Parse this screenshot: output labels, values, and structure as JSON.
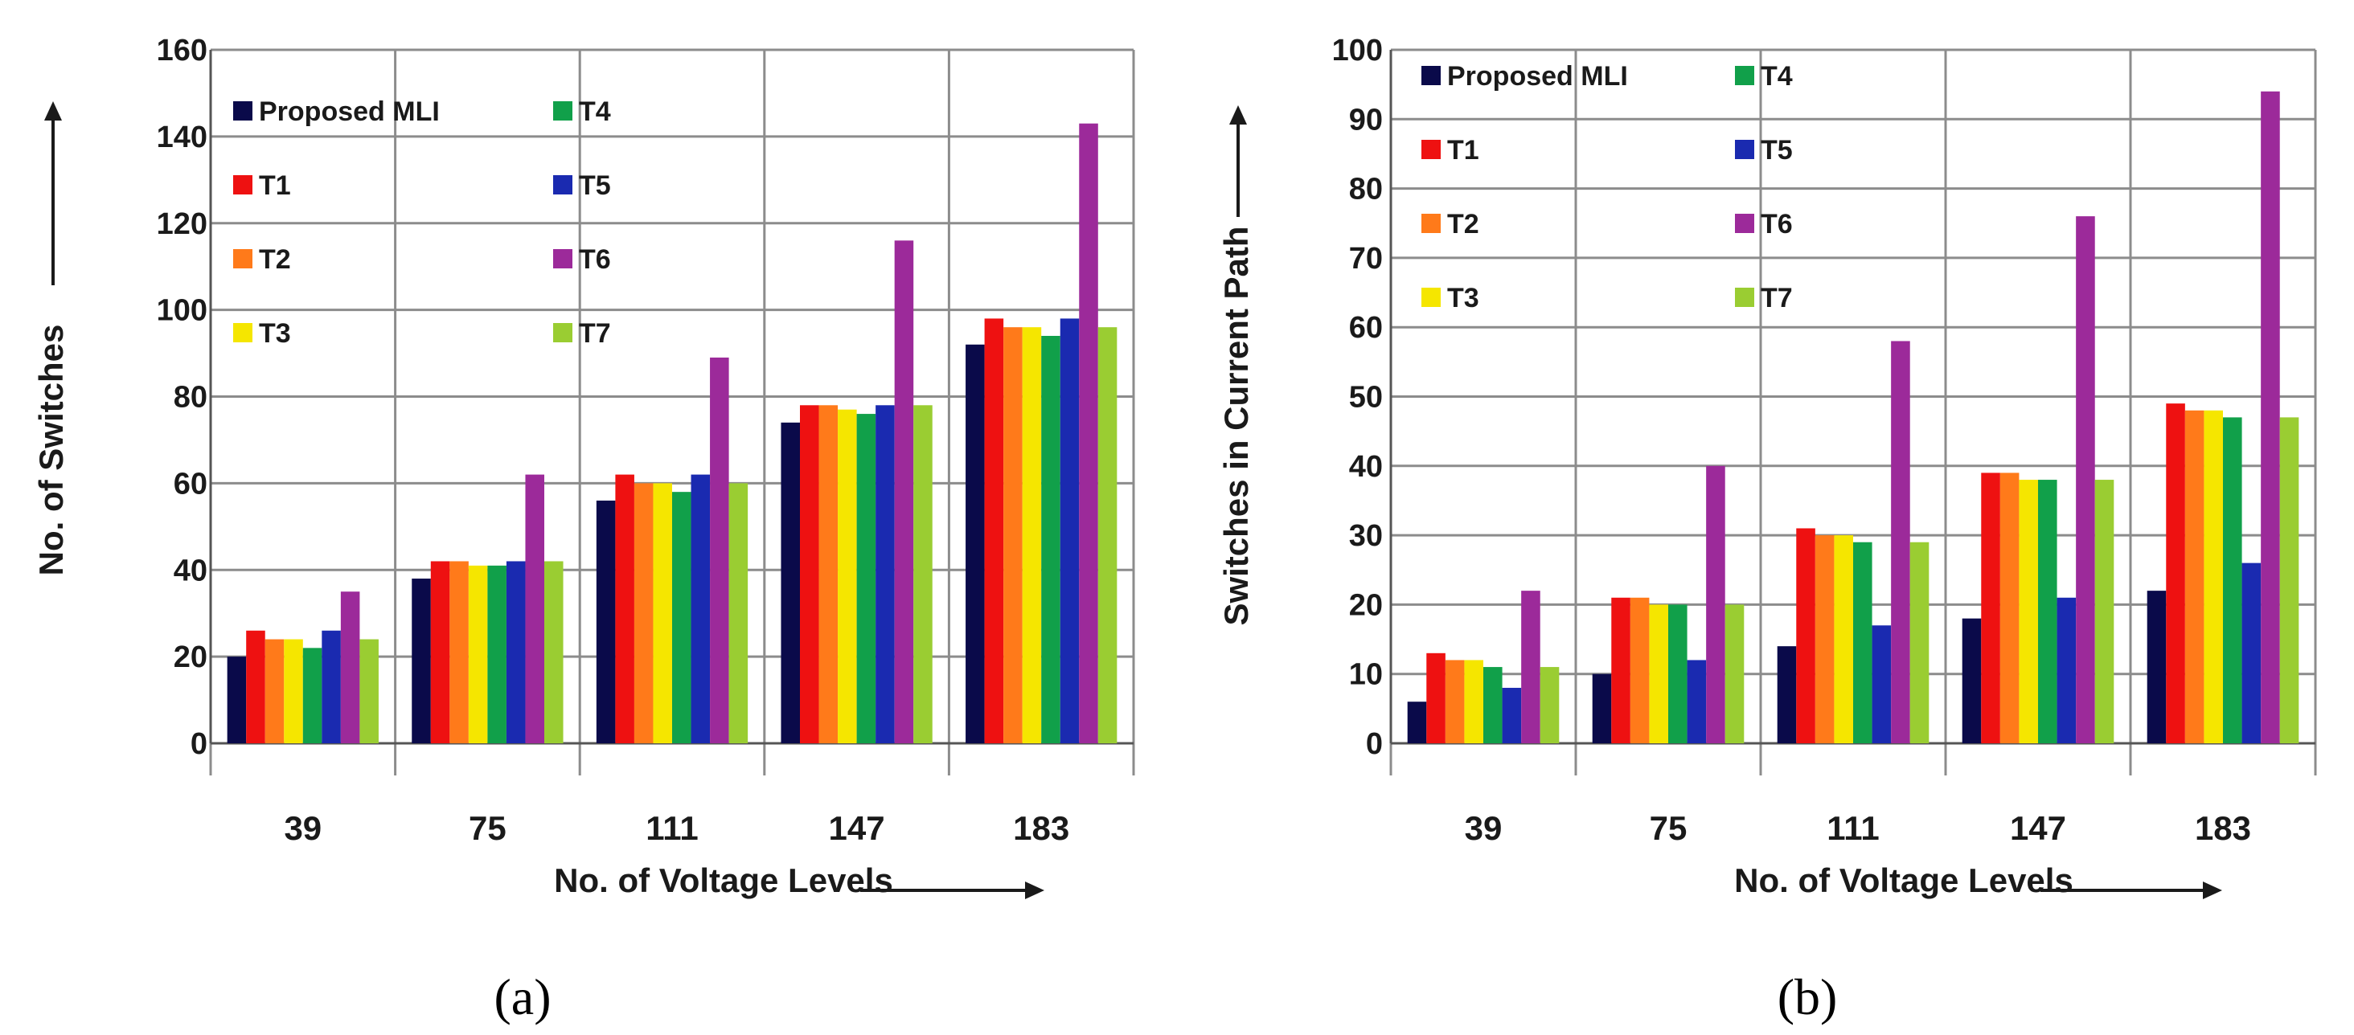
{
  "chart_data": [
    {
      "type": "bar",
      "panel_label": "(a)",
      "xlabel": "No. of Voltage Levels",
      "ylabel": "No. of Switches",
      "categories": [
        "39",
        "75",
        "111",
        "147",
        "183"
      ],
      "ylim": [
        0,
        160
      ],
      "yticks": [
        "0",
        "20",
        "40",
        "60",
        "80",
        "100",
        "120",
        "140",
        "160"
      ],
      "grid": true,
      "legend_placement": "top-left",
      "series": [
        {
          "name": "Proposed MLI",
          "color": "#0a0a4a",
          "values": [
            20,
            38,
            56,
            74,
            92
          ]
        },
        {
          "name": "T1",
          "color": "#ee1111",
          "values": [
            26,
            42,
            62,
            78,
            98
          ]
        },
        {
          "name": "T2",
          "color": "#ff7a1a",
          "values": [
            24,
            42,
            60,
            78,
            96
          ]
        },
        {
          "name": "T3",
          "color": "#f5e600",
          "values": [
            24,
            41,
            60,
            77,
            96
          ]
        },
        {
          "name": "T4",
          "color": "#11a04a",
          "values": [
            22,
            41,
            58,
            76,
            94
          ]
        },
        {
          "name": "T5",
          "color": "#1a2ab0",
          "values": [
            26,
            42,
            62,
            78,
            98
          ]
        },
        {
          "name": "T6",
          "color": "#9c2a9a",
          "values": [
            35,
            62,
            89,
            116,
            143
          ]
        },
        {
          "name": "T7",
          "color": "#9acd32",
          "values": [
            24,
            42,
            60,
            78,
            96
          ]
        }
      ]
    },
    {
      "type": "bar",
      "panel_label": "(b)",
      "xlabel": "No. of Voltage Levels",
      "ylabel": "Switches in Current Path",
      "categories": [
        "39",
        "75",
        "111",
        "147",
        "183"
      ],
      "ylim": [
        0,
        100
      ],
      "yticks": [
        "0",
        "10",
        "20",
        "30",
        "40",
        "50",
        "60",
        "70",
        "80",
        "90",
        "100"
      ],
      "grid": true,
      "legend_placement": "top-left",
      "series": [
        {
          "name": "Proposed MLI",
          "color": "#0a0a4a",
          "values": [
            6,
            10,
            14,
            18,
            22
          ]
        },
        {
          "name": "T1",
          "color": "#ee1111",
          "values": [
            13,
            21,
            31,
            39,
            49
          ]
        },
        {
          "name": "T2",
          "color": "#ff7a1a",
          "values": [
            12,
            21,
            30,
            39,
            48
          ]
        },
        {
          "name": "T3",
          "color": "#f5e600",
          "values": [
            12,
            20,
            30,
            38,
            48
          ]
        },
        {
          "name": "T4",
          "color": "#11a04a",
          "values": [
            11,
            20,
            29,
            38,
            47
          ]
        },
        {
          "name": "T5",
          "color": "#1a2ab0",
          "values": [
            8,
            12,
            17,
            21,
            26
          ]
        },
        {
          "name": "T6",
          "color": "#9c2a9a",
          "values": [
            22,
            40,
            58,
            76,
            94
          ]
        },
        {
          "name": "T7",
          "color": "#9acd32",
          "values": [
            11,
            20,
            29,
            38,
            47
          ]
        }
      ]
    }
  ]
}
